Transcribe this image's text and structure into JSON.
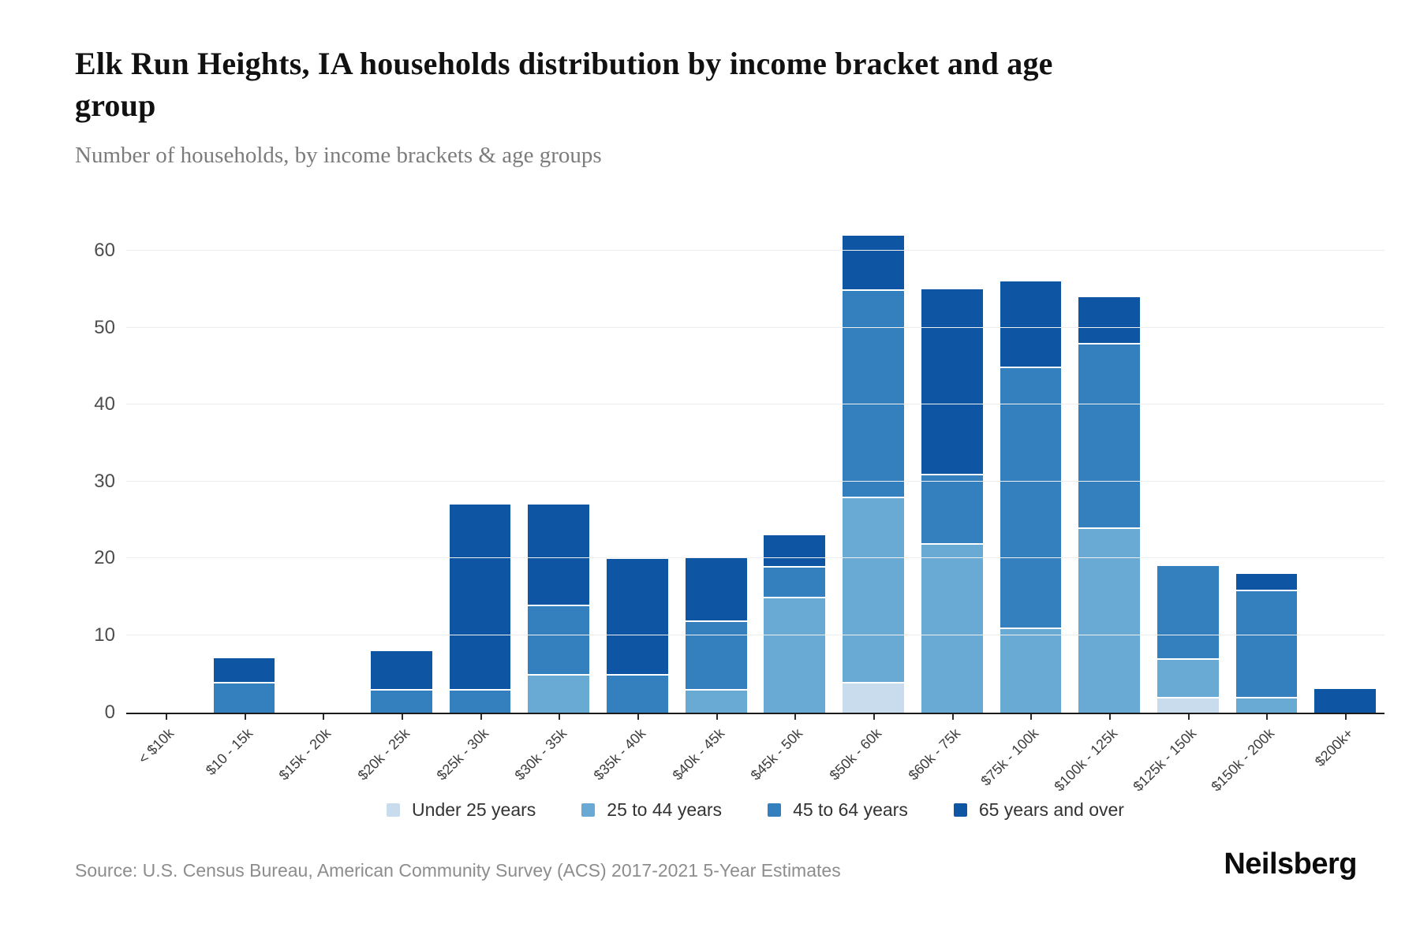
{
  "header": {
    "title": "Elk Run Heights, IA households distribution by income bracket and age group",
    "subtitle": "Number of households, by income brackets & age groups"
  },
  "footer": {
    "source": "Source: U.S. Census Bureau, American Community Survey (ACS) 2017-2021 5-Year Estimates",
    "logo": "Neilsberg"
  },
  "chart_data": {
    "type": "bar",
    "stacked": true,
    "title": "Elk Run Heights, IA households distribution by income bracket and age group",
    "subtitle": "Number of households, by income brackets & age groups",
    "xlabel": "",
    "ylabel": "",
    "ylim": [
      0,
      65.6
    ],
    "yticks": [
      0,
      10,
      20,
      30,
      40,
      50,
      60
    ],
    "grid": "horizontal",
    "legend_position": "bottom",
    "categories": [
      "< $10k",
      "$10 - 15k",
      "$15k - 20k",
      "$20k - 25k",
      "$25k - 30k",
      "$30k - 35k",
      "$35k - 40k",
      "$40k - 45k",
      "$45k - 50k",
      "$50k - 60k",
      "$60k - 75k",
      "$75k - 100k",
      "$100k - 125k",
      "$125k - 150k",
      "$150k - 200k",
      "$200k+"
    ],
    "series": [
      {
        "name": "Under 25 years",
        "color": "#c8dcee",
        "values": [
          0,
          0,
          0,
          0,
          0,
          0,
          0,
          0,
          0,
          4,
          0,
          0,
          0,
          2,
          0,
          0
        ]
      },
      {
        "name": "25 to 44 years",
        "color": "#69aad5",
        "values": [
          0,
          0,
          0,
          0,
          0,
          5,
          0,
          3,
          15,
          24,
          22,
          11,
          24,
          5,
          2,
          0
        ]
      },
      {
        "name": "45 to 64 years",
        "color": "#3480be",
        "values": [
          0,
          4,
          0,
          3,
          3,
          9,
          5,
          9,
          4,
          27,
          9,
          34,
          24,
          12,
          14,
          0
        ]
      },
      {
        "name": "65 years and over",
        "color": "#0e56a4",
        "values": [
          0,
          3,
          0,
          5,
          24,
          13,
          15,
          8,
          4,
          7,
          24,
          11,
          6,
          0,
          2,
          3
        ]
      }
    ],
    "totals": [
      0,
      7,
      0,
      8,
      27,
      27,
      20,
      20,
      23,
      62,
      55,
      56,
      54,
      19,
      18,
      3
    ]
  }
}
